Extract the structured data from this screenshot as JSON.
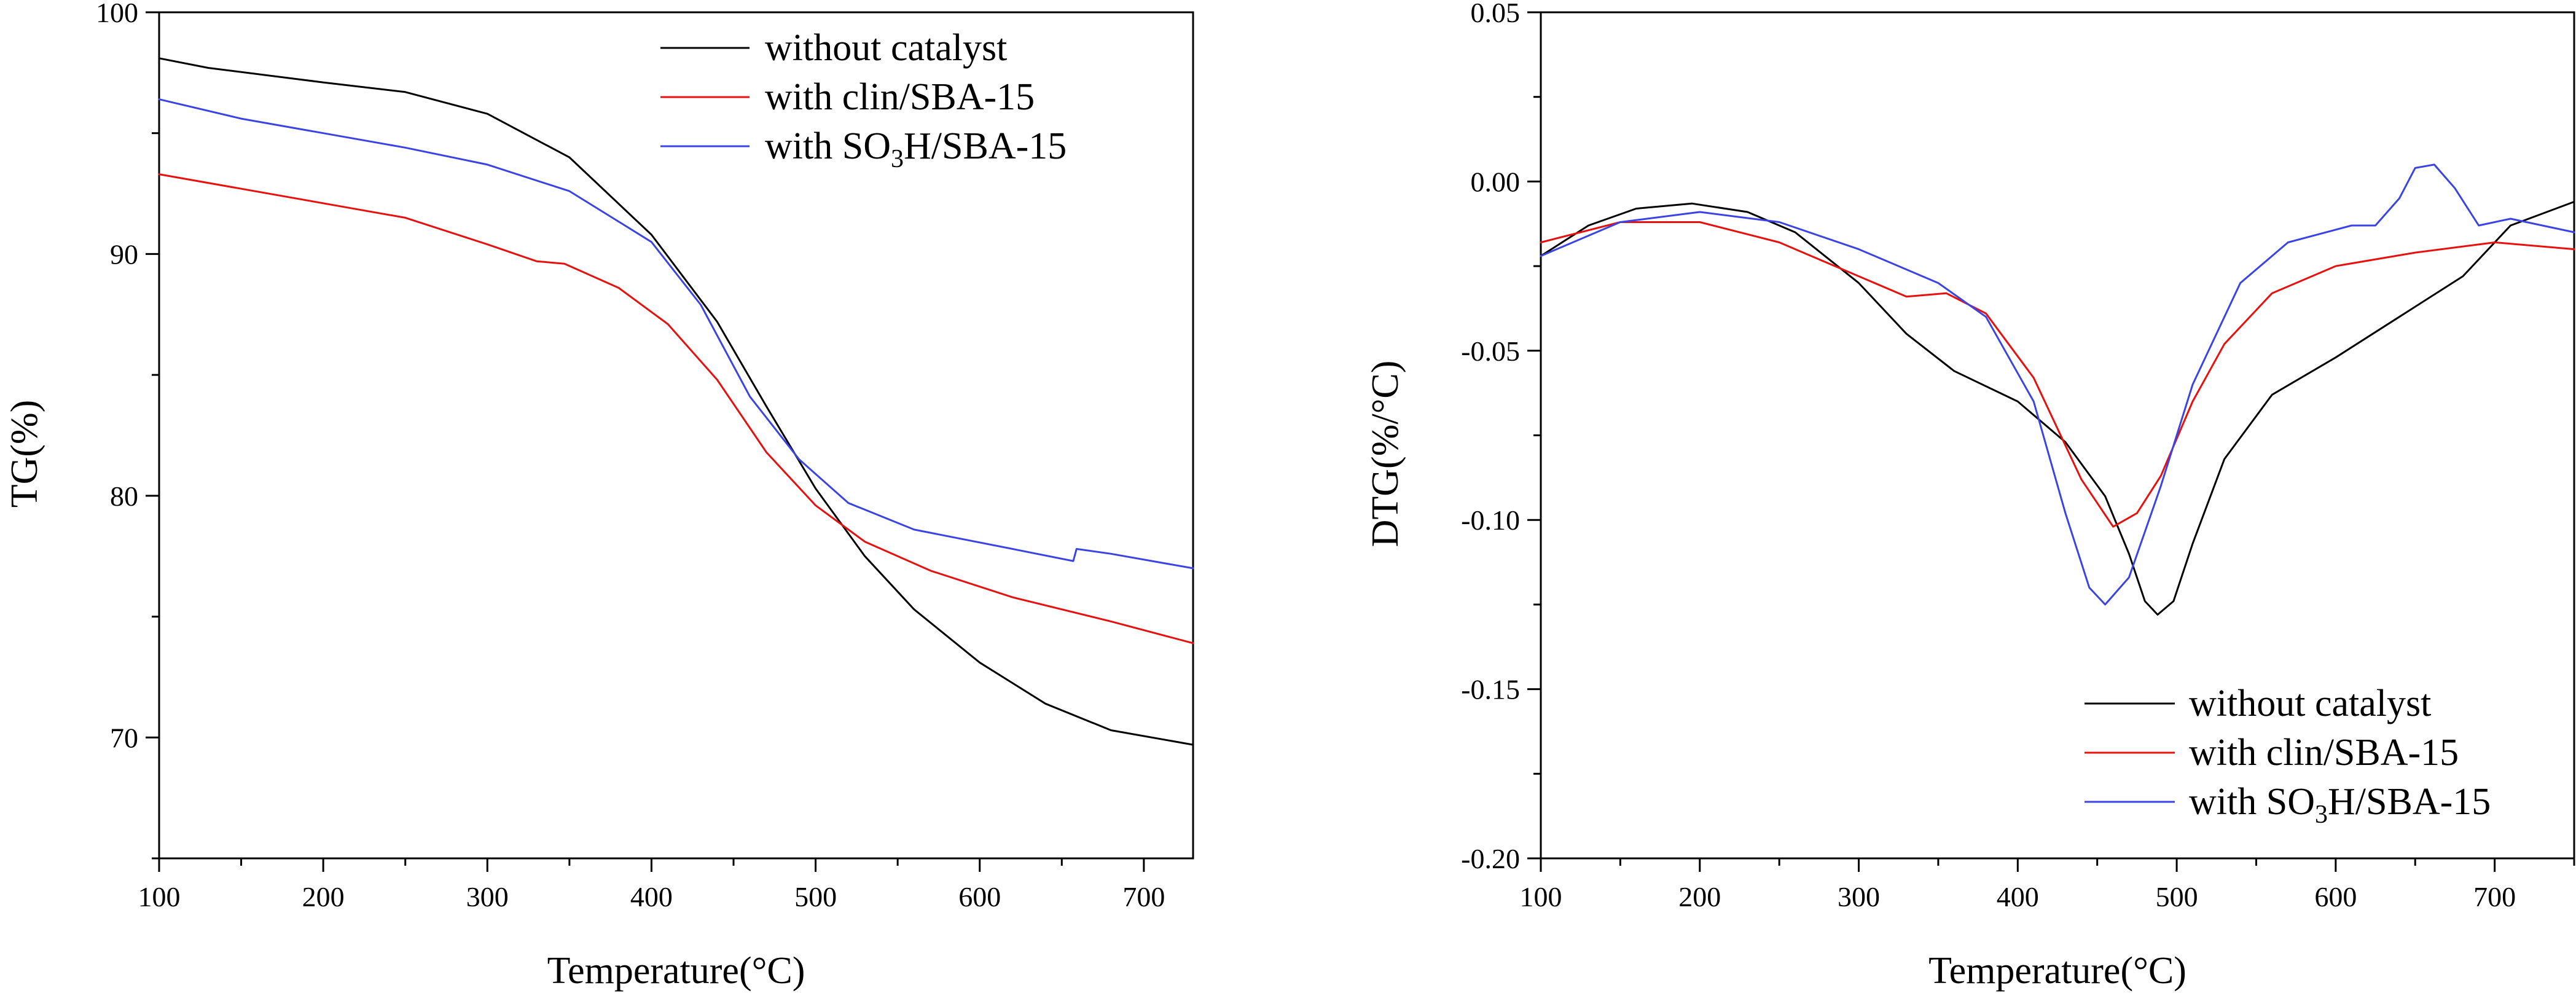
{
  "chart_data": [
    {
      "type": "line",
      "panel": "left",
      "title": "",
      "xlabel": "Temperature(°C)",
      "ylabel": "TG(%)",
      "xlim": [
        100,
        730
      ],
      "ylim": [
        65,
        100
      ],
      "xticks": [
        100,
        200,
        300,
        400,
        500,
        600,
        700
      ],
      "yticks": [
        70,
        80,
        90,
        100
      ],
      "legend_position": "top-right",
      "series": [
        {
          "name": "without catalyst",
          "legend_main": "without catalyst",
          "color": "#000000",
          "points": [
            [
              100,
              98.1
            ],
            [
              130,
              97.7
            ],
            [
              200,
              97.1
            ],
            [
              250,
              96.7
            ],
            [
              300,
              95.8
            ],
            [
              350,
              94.0
            ],
            [
              400,
              90.8
            ],
            [
              440,
              87.2
            ],
            [
              470,
              83.7
            ],
            [
              500,
              80.3
            ],
            [
              530,
              77.5
            ],
            [
              560,
              75.3
            ],
            [
              600,
              73.1
            ],
            [
              640,
              71.4
            ],
            [
              680,
              70.3
            ],
            [
              730,
              69.7
            ]
          ]
        },
        {
          "name": "with clin/SBA-15",
          "legend_main": "with clin/SBA-15",
          "color": "#e8100d",
          "points": [
            [
              100,
              93.3
            ],
            [
              150,
              92.7
            ],
            [
              200,
              92.1
            ],
            [
              250,
              91.5
            ],
            [
              300,
              90.4
            ],
            [
              330,
              89.7
            ],
            [
              347,
              89.6
            ],
            [
              380,
              88.6
            ],
            [
              410,
              87.1
            ],
            [
              440,
              84.8
            ],
            [
              470,
              81.8
            ],
            [
              500,
              79.6
            ],
            [
              530,
              78.1
            ],
            [
              570,
              76.9
            ],
            [
              620,
              75.8
            ],
            [
              680,
              74.8
            ],
            [
              730,
              73.9
            ]
          ]
        },
        {
          "name": "with SO3H/SBA-15",
          "legend_main": "with SO",
          "legend_sub": "3",
          "legend_tail": "H/SBA-15",
          "color": "#3a44e6",
          "points": [
            [
              100,
              96.4
            ],
            [
              150,
              95.6
            ],
            [
              200,
              95.0
            ],
            [
              250,
              94.4
            ],
            [
              300,
              93.7
            ],
            [
              350,
              92.6
            ],
            [
              400,
              90.5
            ],
            [
              430,
              87.9
            ],
            [
              460,
              84.1
            ],
            [
              490,
              81.5
            ],
            [
              520,
              79.7
            ],
            [
              560,
              78.6
            ],
            [
              620,
              77.8
            ],
            [
              657,
              77.3
            ],
            [
              659,
              77.8
            ],
            [
              680,
              77.6
            ],
            [
              730,
              77.0
            ]
          ]
        }
      ]
    },
    {
      "type": "line",
      "panel": "right",
      "title": "",
      "xlabel": "Temperature(°C)",
      "ylabel": "DTG(%/°C)",
      "xlim": [
        100,
        750
      ],
      "ylim": [
        -0.2,
        0.05
      ],
      "xticks": [
        100,
        200,
        300,
        400,
        500,
        600,
        700
      ],
      "yticks": [
        0.05,
        0.0,
        -0.05,
        -0.1,
        -0.15,
        -0.2
      ],
      "ytick_labels": [
        "0.05",
        "0.00",
        "-0.05",
        "-0.10",
        "-0.15",
        "-0.20"
      ],
      "legend_position": "bottom-right",
      "series": [
        {
          "name": "without catalyst",
          "legend_main": "without catalyst",
          "color": "#000000",
          "points": [
            [
              100,
              -0.022
            ],
            [
              130,
              -0.013
            ],
            [
              160,
              -0.008
            ],
            [
              195,
              -0.0065
            ],
            [
              230,
              -0.009
            ],
            [
              260,
              -0.015
            ],
            [
              300,
              -0.03
            ],
            [
              330,
              -0.045
            ],
            [
              360,
              -0.056
            ],
            [
              400,
              -0.065
            ],
            [
              430,
              -0.077
            ],
            [
              455,
              -0.093
            ],
            [
              470,
              -0.11
            ],
            [
              480,
              -0.124
            ],
            [
              488,
              -0.128
            ],
            [
              498,
              -0.124
            ],
            [
              510,
              -0.107
            ],
            [
              530,
              -0.082
            ],
            [
              560,
              -0.063
            ],
            [
              600,
              -0.052
            ],
            [
              640,
              -0.04
            ],
            [
              680,
              -0.028
            ],
            [
              710,
              -0.013
            ],
            [
              750,
              -0.006
            ]
          ]
        },
        {
          "name": "with clin/SBA-15",
          "legend_main": "with clin/SBA-15",
          "color": "#e8100d",
          "points": [
            [
              100,
              -0.018
            ],
            [
              150,
              -0.012
            ],
            [
              200,
              -0.012
            ],
            [
              250,
              -0.018
            ],
            [
              300,
              -0.028
            ],
            [
              330,
              -0.034
            ],
            [
              355,
              -0.033
            ],
            [
              380,
              -0.039
            ],
            [
              410,
              -0.058
            ],
            [
              440,
              -0.088
            ],
            [
              460,
              -0.102
            ],
            [
              475,
              -0.098
            ],
            [
              490,
              -0.087
            ],
            [
              510,
              -0.065
            ],
            [
              530,
              -0.048
            ],
            [
              560,
              -0.033
            ],
            [
              600,
              -0.025
            ],
            [
              650,
              -0.021
            ],
            [
              700,
              -0.018
            ],
            [
              750,
              -0.02
            ]
          ]
        },
        {
          "name": "with SO3H/SBA-15",
          "legend_main": "with SO",
          "legend_sub": "3",
          "legend_tail": "H/SBA-15",
          "color": "#3a44e6",
          "points": [
            [
              100,
              -0.022
            ],
            [
              150,
              -0.012
            ],
            [
              200,
              -0.009
            ],
            [
              250,
              -0.012
            ],
            [
              300,
              -0.02
            ],
            [
              350,
              -0.03
            ],
            [
              380,
              -0.04
            ],
            [
              410,
              -0.065
            ],
            [
              430,
              -0.098
            ],
            [
              445,
              -0.12
            ],
            [
              455,
              -0.125
            ],
            [
              470,
              -0.117
            ],
            [
              490,
              -0.09
            ],
            [
              510,
              -0.06
            ],
            [
              540,
              -0.03
            ],
            [
              570,
              -0.018
            ],
            [
              610,
              -0.013
            ],
            [
              625,
              -0.013
            ],
            [
              640,
              -0.005
            ],
            [
              650,
              0.004
            ],
            [
              662,
              0.005
            ],
            [
              675,
              -0.002
            ],
            [
              690,
              -0.013
            ],
            [
              710,
              -0.011
            ],
            [
              750,
              -0.015
            ]
          ]
        }
      ]
    }
  ]
}
